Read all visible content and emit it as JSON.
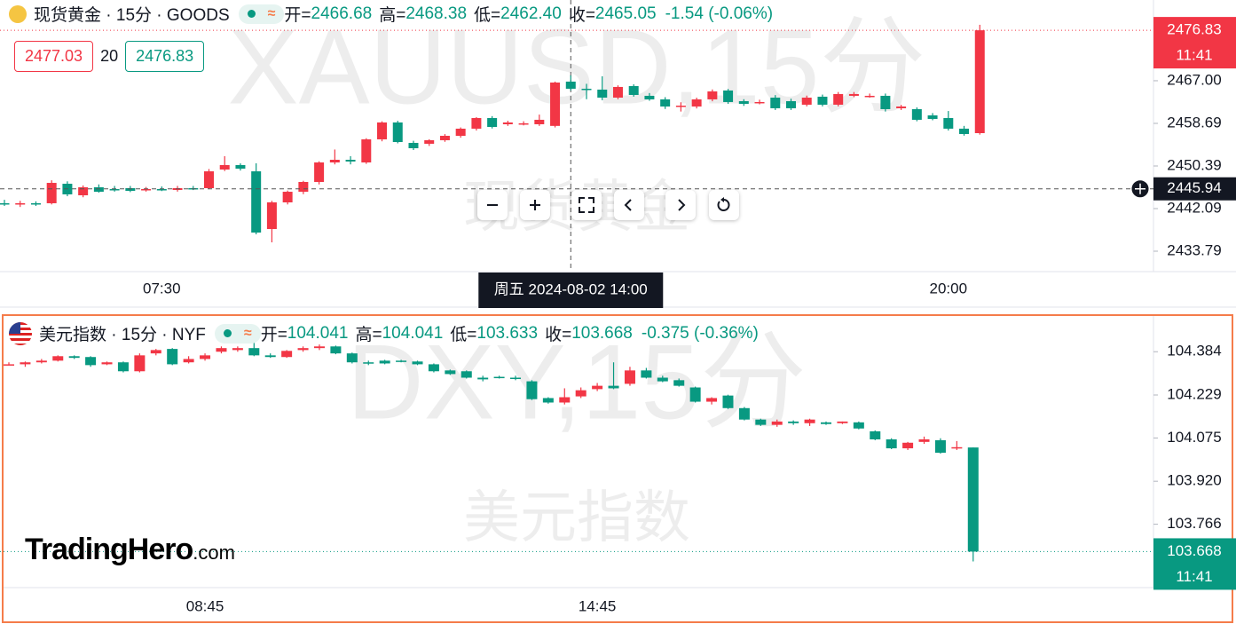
{
  "chart_data": [
    {
      "type": "candlestick",
      "symbol": "现货黄金 · 15分 · GOODS",
      "watermark": "XAUUSD,15分",
      "watermark_name": "现货黄金",
      "ohlc": [
        {
          "label": "开=",
          "value": "2466.68"
        },
        {
          "label": "高=",
          "value": "2468.38"
        },
        {
          "label": "低=",
          "value": "2462.40"
        },
        {
          "label": "收=",
          "value": "2465.05"
        }
      ],
      "change": "-1.54 (-0.06%)",
      "readout_color": "#089981",
      "quote": {
        "ask": 2477.03,
        "spread": 20,
        "bid": 2476.83
      },
      "categories": [
        null,
        null,
        null,
        null,
        null,
        null,
        null,
        null,
        null,
        null,
        "07:30",
        null,
        null,
        null,
        null,
        null,
        null,
        null,
        null,
        null,
        null,
        null,
        null,
        null,
        null,
        null,
        null,
        null,
        null,
        null,
        null,
        null,
        null,
        null,
        null,
        null,
        "周五 2024-08-02 14:00",
        null,
        null,
        null,
        null,
        null,
        null,
        null,
        null,
        null,
        null,
        null,
        null,
        null,
        null,
        null,
        null,
        null,
        null,
        null,
        null,
        null,
        null,
        null,
        "20:00",
        null,
        null
      ],
      "open": [
        2443.13,
        2442.95,
        2443.13,
        2443.13,
        2446.93,
        2444.68,
        2446.24,
        2445.89,
        2446.07,
        2445.72,
        2445.89,
        2445.72,
        2446.07,
        2446.07,
        2449.7,
        2450.57,
        2449.35,
        2438.11,
        2443.3,
        2445.37,
        2447.28,
        2451.08,
        2451.6,
        2451.08,
        2455.58,
        2458.87,
        2454.89,
        2454.72,
        2455.41,
        2456.27,
        2457.66,
        2459.73,
        2458.52,
        2458.7,
        2458.52,
        2458.2,
        2466.83,
        2465.44,
        2465.27,
        2463.71,
        2465.96,
        2464.06,
        2463.37,
        2461.98,
        2461.98,
        2463.37,
        2465.1,
        2463.02,
        2462.85,
        2463.71,
        2463.02,
        2462.33,
        2463.89,
        2462.33,
        2464.06,
        2464.06,
        2464.06,
        2461.64,
        2461.46,
        2460.25,
        2459.73,
        2457.66,
        2456.79
      ],
      "high": [
        2443.8,
        2443.6,
        2443.5,
        2447.6,
        2447.4,
        2446.6,
        2446.8,
        2446.5,
        2446.5,
        2446.3,
        2446.4,
        2446.5,
        2446.5,
        2449.8,
        2452.3,
        2450.9,
        2450.91,
        2443.6,
        2445.6,
        2447.5,
        2451.3,
        2453.6,
        2452.3,
        2455.8,
        2459.1,
        2459.2,
        2455.3,
        2455.6,
        2456.6,
        2457.9,
        2459.9,
        2460.1,
        2459.2,
        2459.1,
        2460.4,
        2466.83,
        2468.04,
        2466.4,
        2467.87,
        2466.1,
        2466.3,
        2464.6,
        2463.8,
        2462.8,
        2463.7,
        2465.3,
        2465.4,
        2463.4,
        2463.3,
        2464.2,
        2463.5,
        2464.1,
        2464.3,
        2464.8,
        2464.8,
        2464.5,
        2464.5,
        2462.3,
        2461.8,
        2460.7,
        2461.1,
        2458.2,
        2477.9
      ],
      "low": [
        2442.6,
        2442.4,
        2442.6,
        2442.9,
        2444.5,
        2444.3,
        2445.2,
        2445.4,
        2445.3,
        2445.4,
        2445.5,
        2445.4,
        2445.7,
        2445.9,
        2449.4,
        2449.5,
        2437.07,
        2435.51,
        2442.9,
        2444.9,
        2446.8,
        2450.7,
        2450.7,
        2450.8,
        2455.2,
        2454.8,
        2453.5,
        2454.3,
        2455.1,
        2455.9,
        2457.3,
        2457.7,
        2458.2,
        2458.3,
        2458.2,
        2457.9,
        2465.1,
        2463.4,
        2463.2,
        2463.4,
        2463.9,
        2463.1,
        2461.5,
        2461.0,
        2461.6,
        2463.0,
        2462.5,
        2462.1,
        2462.4,
        2461.3,
        2461.3,
        2462.0,
        2462.0,
        2462.0,
        2463.8,
        2463.7,
        2461.0,
        2461.3,
        2459.1,
        2459.3,
        2457.3,
        2456.3,
        2456.5
      ],
      "close": [
        2442.95,
        2443.13,
        2442.95,
        2447.1,
        2444.86,
        2446.24,
        2445.37,
        2445.72,
        2445.55,
        2445.89,
        2445.72,
        2446.07,
        2445.89,
        2449.35,
        2450.57,
        2449.87,
        2437.42,
        2443.3,
        2445.37,
        2447.28,
        2451.08,
        2451.6,
        2451.26,
        2455.58,
        2458.87,
        2455.06,
        2453.85,
        2455.41,
        2456.27,
        2457.66,
        2459.73,
        2458.0,
        2458.87,
        2458.7,
        2459.39,
        2466.65,
        2465.44,
        2465.27,
        2463.71,
        2465.79,
        2464.23,
        2463.37,
        2461.98,
        2462.15,
        2463.37,
        2464.92,
        2462.85,
        2462.5,
        2462.85,
        2461.64,
        2461.64,
        2463.71,
        2462.33,
        2464.41,
        2464.41,
        2464.06,
        2461.46,
        2461.98,
        2459.39,
        2459.56,
        2457.66,
        2456.62,
        2476.83
      ],
      "up_color": "#f23645",
      "down_color": "#089981",
      "ylim": [
        2429.81,
        2482.73
      ],
      "yticks": [
        {
          "value": 2467,
          "label": "2467.00"
        },
        2458.69,
        2450.39,
        2442.09,
        2433.79
      ],
      "last_price": 2476.83,
      "countdown": "11:41",
      "crosshair": {
        "category": "周五 2024-08-02 14:00",
        "y": 2445.94
      }
    },
    {
      "type": "candlestick",
      "symbol": "美元指数 · 15分 · NYF",
      "watermark": "DXY,15分",
      "watermark_name": "美元指数",
      "ohlc": [
        {
          "label": "开=",
          "value": "104.041"
        },
        {
          "label": "高=",
          "value": "104.041"
        },
        {
          "label": "低=",
          "value": "103.633"
        },
        {
          "label": "收=",
          "value": "103.668"
        }
      ],
      "change": "-0.375 (-0.36%)",
      "readout_color": "#089981",
      "categories": [
        null,
        null,
        null,
        null,
        null,
        null,
        null,
        null,
        null,
        null,
        null,
        null,
        "08:45",
        null,
        null,
        null,
        null,
        null,
        null,
        null,
        null,
        null,
        null,
        null,
        null,
        null,
        null,
        null,
        null,
        null,
        null,
        null,
        null,
        null,
        null,
        null,
        "14:45",
        null,
        null,
        null,
        null,
        null,
        null,
        null,
        null,
        null,
        null,
        null,
        null,
        null,
        null,
        null,
        null,
        null,
        null,
        null,
        null,
        null,
        null,
        null
      ],
      "open": [
        104.339,
        104.339,
        104.346,
        104.352,
        104.368,
        104.365,
        104.339,
        104.346,
        104.314,
        104.378,
        104.394,
        104.346,
        104.358,
        104.384,
        104.39,
        104.397,
        104.371,
        104.365,
        104.39,
        104.397,
        104.403,
        104.378,
        104.346,
        104.352,
        104.352,
        104.349,
        104.339,
        104.317,
        104.314,
        104.291,
        104.294,
        104.291,
        104.278,
        104.218,
        104.202,
        104.224,
        104.25,
        104.262,
        104.269,
        104.317,
        104.291,
        104.282,
        104.256,
        104.205,
        104.227,
        104.182,
        104.141,
        104.122,
        104.134,
        104.128,
        104.131,
        104.128,
        104.131,
        104.099,
        104.07,
        104.038,
        104.061,
        104.067,
        104.038,
        104.041
      ],
      "high": [
        104.346,
        104.349,
        104.358,
        104.371,
        104.371,
        104.368,
        104.349,
        104.349,
        104.378,
        104.394,
        104.397,
        104.368,
        104.378,
        104.403,
        104.403,
        104.416,
        104.378,
        104.39,
        104.403,
        104.41,
        104.406,
        104.381,
        104.352,
        104.355,
        104.355,
        104.352,
        104.342,
        104.32,
        104.317,
        104.298,
        104.298,
        104.298,
        104.282,
        104.221,
        104.253,
        104.256,
        104.272,
        104.346,
        104.33,
        104.326,
        104.298,
        104.288,
        104.259,
        104.221,
        104.23,
        104.186,
        104.144,
        104.141,
        104.138,
        104.144,
        104.134,
        104.134,
        104.134,
        104.102,
        104.074,
        104.061,
        104.08,
        104.074,
        104.064,
        104.041
      ],
      "low": [
        104.336,
        104.33,
        104.342,
        104.349,
        104.358,
        104.33,
        104.336,
        104.31,
        104.31,
        104.371,
        104.336,
        104.342,
        104.352,
        104.378,
        104.384,
        104.368,
        104.362,
        104.362,
        104.384,
        104.39,
        104.375,
        104.342,
        104.336,
        104.339,
        104.346,
        104.336,
        104.31,
        104.301,
        104.288,
        104.278,
        104.288,
        104.282,
        104.211,
        104.198,
        104.195,
        104.218,
        104.243,
        104.25,
        104.262,
        104.288,
        104.275,
        104.259,
        104.202,
        104.195,
        104.179,
        104.138,
        104.118,
        104.115,
        104.122,
        104.118,
        104.122,
        104.125,
        104.106,
        104.067,
        104.035,
        104.032,
        104.054,
        104.019,
        104.032,
        103.633
      ],
      "close": [
        104.339,
        104.346,
        104.352,
        104.368,
        104.362,
        104.336,
        104.346,
        104.314,
        104.371,
        104.39,
        104.339,
        104.358,
        104.371,
        104.397,
        104.397,
        104.371,
        104.365,
        104.387,
        104.397,
        104.403,
        104.378,
        104.346,
        104.342,
        104.342,
        104.349,
        104.339,
        104.314,
        104.304,
        104.291,
        104.285,
        104.291,
        104.288,
        104.214,
        104.202,
        104.221,
        104.246,
        104.262,
        104.253,
        104.317,
        104.291,
        104.278,
        104.262,
        104.205,
        104.218,
        104.182,
        104.141,
        104.122,
        104.134,
        104.128,
        104.141,
        104.125,
        104.134,
        104.109,
        104.07,
        104.038,
        104.058,
        104.07,
        104.022,
        104.042,
        103.668
      ],
      "up_color": "#f23645",
      "down_color": "#089981",
      "ylim": [
        103.539,
        104.512
      ],
      "yticks": [
        104.384,
        104.229,
        104.075,
        {
          "value": 103.92,
          "label": "103.920"
        },
        103.766
      ],
      "last_price": 103.668,
      "countdown": "11:41"
    }
  ],
  "logo": {
    "name": "TradingHero",
    "suffix": ".com"
  }
}
